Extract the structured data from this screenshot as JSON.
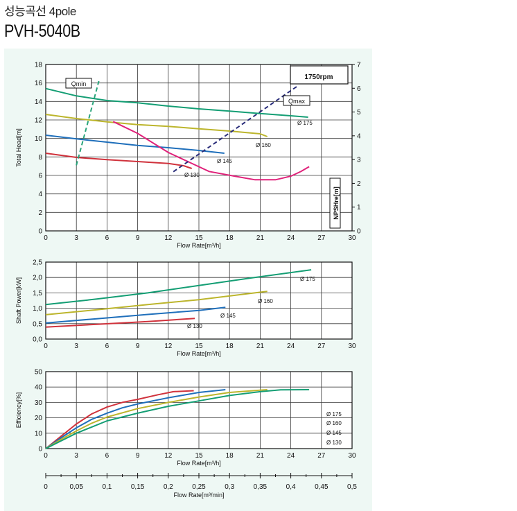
{
  "header": {
    "subtitle": "성능곡선 4pole",
    "model": "PVH-5040B"
  },
  "colors": {
    "d175": "#149e74",
    "d160": "#bcb52c",
    "d145": "#1f6fbb",
    "d130": "#d0323c",
    "npsh": "#e0217a",
    "qline": "#28a47a",
    "qmaxline": "#2a2d7a",
    "grid": "#3a3a3a",
    "panel": "#eef8f4"
  },
  "chart_data": [
    {
      "type": "line",
      "id": "head",
      "ylabel": "Total Head[m]",
      "xlabel": "Flow Rate[m³/h]",
      "y2label": "NPSHre[m]",
      "xlim": [
        0,
        30
      ],
      "ylim": [
        0,
        18
      ],
      "y2lim": [
        0,
        7
      ],
      "xticks": [
        "0",
        "3",
        "6",
        "9",
        "12",
        "15",
        "18",
        "21",
        "24",
        "27",
        "30"
      ],
      "yticks": [
        "0",
        "2",
        "4",
        "6",
        "8",
        "10",
        "12",
        "14",
        "16",
        "18"
      ],
      "y2ticks": [
        "0",
        "1",
        "2",
        "3",
        "4",
        "5",
        "6",
        "7"
      ],
      "speed_label": "1750rpm",
      "series": [
        {
          "name": "Ø 175",
          "color_key": "d175",
          "points": [
            [
              0,
              15.4
            ],
            [
              3,
              14.6
            ],
            [
              6,
              14.1
            ],
            [
              9,
              13.85
            ],
            [
              12,
              13.5
            ],
            [
              15,
              13.2
            ],
            [
              18,
              12.95
            ],
            [
              21,
              12.7
            ],
            [
              24,
              12.45
            ],
            [
              25.7,
              12.3
            ]
          ]
        },
        {
          "name": "Ø 160",
          "color_key": "d160",
          "points": [
            [
              0,
              12.6
            ],
            [
              3,
              12.15
            ],
            [
              6,
              11.8
            ],
            [
              9,
              11.5
            ],
            [
              12,
              11.3
            ],
            [
              15,
              11.05
            ],
            [
              18,
              10.8
            ],
            [
              21,
              10.5
            ],
            [
              21.7,
              10.2
            ]
          ]
        },
        {
          "name": "Ø 145",
          "color_key": "d145",
          "points": [
            [
              0,
              10.35
            ],
            [
              3,
              9.95
            ],
            [
              6,
              9.6
            ],
            [
              9,
              9.25
            ],
            [
              12,
              9.0
            ],
            [
              15,
              8.7
            ],
            [
              17.5,
              8.4
            ]
          ]
        },
        {
          "name": "Ø 130",
          "color_key": "d130",
          "points": [
            [
              0,
              8.4
            ],
            [
              3,
              7.95
            ],
            [
              6,
              7.7
            ],
            [
              9,
              7.5
            ],
            [
              12,
              7.3
            ],
            [
              13.5,
              7.05
            ],
            [
              14.3,
              6.75
            ]
          ]
        }
      ],
      "npshre": {
        "color_key": "npsh",
        "points": [
          [
            6.6,
            4.6
          ],
          [
            9,
            4.1
          ],
          [
            12,
            3.3
          ],
          [
            14.5,
            2.8
          ],
          [
            16,
            2.5
          ],
          [
            18.5,
            2.3
          ],
          [
            20.5,
            2.15
          ],
          [
            22.5,
            2.15
          ],
          [
            24,
            2.3
          ],
          [
            25,
            2.5
          ],
          [
            25.8,
            2.7
          ]
        ]
      },
      "qmin": {
        "label": "Qmin",
        "color_key": "qline",
        "from": [
          3.0,
          7.1
        ],
        "to": [
          5.2,
          16.2
        ]
      },
      "qmax": {
        "label": "Qmax",
        "color_key": "qmaxline",
        "from": [
          12.5,
          6.4
        ],
        "to": [
          24.7,
          15.7
        ]
      }
    },
    {
      "type": "line",
      "id": "power",
      "ylabel": "Shaft Power[kW]",
      "xlabel": "Flow Rate[m³/h]",
      "xlim": [
        0,
        30
      ],
      "ylim": [
        0,
        2.5
      ],
      "xticks": [
        "0",
        "3",
        "6",
        "9",
        "12",
        "15",
        "18",
        "21",
        "24",
        "27",
        "30"
      ],
      "yticks": [
        "0,0",
        "0,5",
        "1,0",
        "1,5",
        "2,0",
        "2,5"
      ],
      "series": [
        {
          "name": "Ø 175",
          "color_key": "d175",
          "points": [
            [
              0,
              1.12
            ],
            [
              5,
              1.3
            ],
            [
              10,
              1.5
            ],
            [
              15,
              1.74
            ],
            [
              20,
              1.98
            ],
            [
              26,
              2.25
            ]
          ]
        },
        {
          "name": "Ø 160",
          "color_key": "d160",
          "points": [
            [
              0,
              0.79
            ],
            [
              5,
              0.95
            ],
            [
              10,
              1.12
            ],
            [
              15,
              1.28
            ],
            [
              21.7,
              1.55
            ]
          ]
        },
        {
          "name": "Ø 145",
          "color_key": "d145",
          "points": [
            [
              0,
              0.52
            ],
            [
              5,
              0.66
            ],
            [
              10,
              0.8
            ],
            [
              15,
              0.93
            ],
            [
              17.6,
              1.03
            ]
          ]
        },
        {
          "name": "Ø 130",
          "color_key": "d130",
          "points": [
            [
              0,
              0.39
            ],
            [
              5,
              0.48
            ],
            [
              10,
              0.57
            ],
            [
              14.6,
              0.67
            ]
          ]
        }
      ]
    },
    {
      "type": "line",
      "id": "efficiency",
      "ylabel": "Efficiency[%]",
      "xlabel": "Flow Rate[m³/h]",
      "x2label": "Flow Rate[m³/min]",
      "xlim": [
        0,
        30
      ],
      "ylim": [
        0,
        50
      ],
      "xticks": [
        "0",
        "3",
        "6",
        "9",
        "12",
        "15",
        "18",
        "21",
        "24",
        "27",
        "30"
      ],
      "yticks": [
        "0",
        "10",
        "20",
        "30",
        "40",
        "50"
      ],
      "x2ticks": [
        "0",
        "0,05",
        "0,1",
        "0,15",
        "0,2",
        "0,25",
        "0,3",
        "0,35",
        "0,4",
        "0,45",
        "0,5"
      ],
      "legend": [
        "Ø 175",
        "Ø 160",
        "Ø 145",
        "Ø 130"
      ],
      "series": [
        {
          "name": "Ø 130",
          "color_key": "d130",
          "points": [
            [
              0,
              0
            ],
            [
              1.5,
              8
            ],
            [
              3,
              16
            ],
            [
              4.5,
              22.5
            ],
            [
              6,
              27
            ],
            [
              7.5,
              30
            ],
            [
              9,
              32
            ],
            [
              11,
              35
            ],
            [
              12.5,
              37
            ],
            [
              14.5,
              37.6
            ]
          ]
        },
        {
          "name": "Ø 145",
          "color_key": "d145",
          "points": [
            [
              0,
              0
            ],
            [
              1.5,
              7
            ],
            [
              3,
              13.5
            ],
            [
              4.5,
              19
            ],
            [
              6,
              23
            ],
            [
              7.5,
              26.5
            ],
            [
              9,
              29
            ],
            [
              12,
              33
            ],
            [
              15,
              36.5
            ],
            [
              17.6,
              38.3
            ]
          ]
        },
        {
          "name": "Ø 160",
          "color_key": "d160",
          "points": [
            [
              0,
              0
            ],
            [
              1.5,
              6
            ],
            [
              3,
              11.5
            ],
            [
              4.5,
              16.5
            ],
            [
              6,
              20.5
            ],
            [
              9,
              26
            ],
            [
              12,
              30
            ],
            [
              15,
              33.5
            ],
            [
              18,
              36.5
            ],
            [
              21.7,
              38.3
            ]
          ]
        },
        {
          "name": "Ø 175",
          "color_key": "d175",
          "points": [
            [
              0,
              0
            ],
            [
              1.5,
              5
            ],
            [
              3,
              10
            ],
            [
              4.5,
              14
            ],
            [
              6,
              18
            ],
            [
              9,
              23
            ],
            [
              12,
              27.5
            ],
            [
              15,
              31
            ],
            [
              18,
              34.5
            ],
            [
              21,
              37
            ],
            [
              23,
              38.2
            ],
            [
              25.8,
              38.3
            ]
          ]
        }
      ]
    }
  ]
}
